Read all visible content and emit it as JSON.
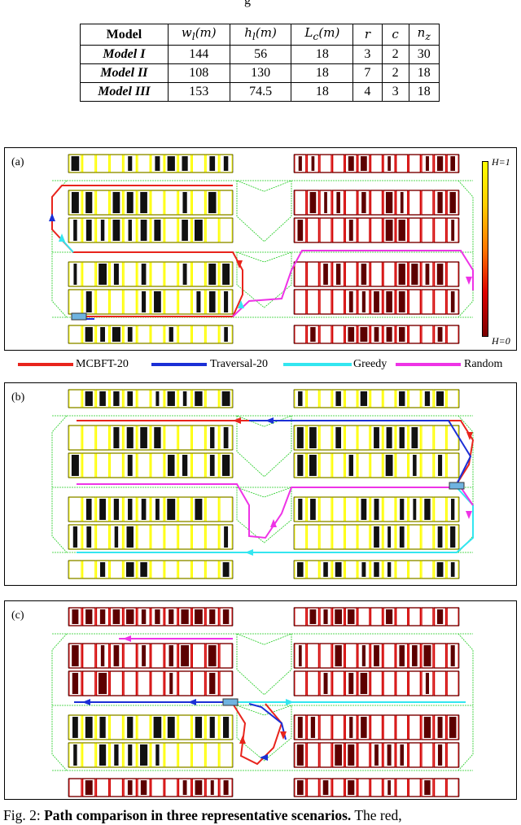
{
  "header_fragment": "g",
  "table": {
    "headers": [
      "Model",
      "w_l(m)",
      "h_l(m)",
      "L_c(m)",
      "r",
      "c",
      "n_z"
    ],
    "rows": [
      [
        "Model I",
        "144",
        "56",
        "18",
        "3",
        "2",
        "30"
      ],
      [
        "Model II",
        "108",
        "130",
        "18",
        "7",
        "2",
        "18"
      ],
      [
        "Model III",
        "153",
        "74.5",
        "18",
        "4",
        "3",
        "18"
      ]
    ]
  },
  "panels": [
    {
      "label": "(a)"
    },
    {
      "label": "(b)"
    },
    {
      "label": "(c)"
    }
  ],
  "colorbar": {
    "top_label": "H=1",
    "bottom_label": "H=0"
  },
  "legend": {
    "items": [
      {
        "name": "MCBFT-20",
        "color": "#e8241c"
      },
      {
        "name": "Traversal-20",
        "color": "#1b2fd6"
      },
      {
        "name": "Greedy",
        "color": "#33e6f0"
      },
      {
        "name": "Random",
        "color": "#ee33e6"
      }
    ]
  },
  "colors": {
    "yellow": "#ffff00",
    "dark_red": "#5c0000",
    "red_outline": "#d40000",
    "green_net": "#22cc22"
  },
  "caption": {
    "prefix": "Fig. 2: ",
    "bold": "Path comparison in three representative scenarios.",
    "rest": " The red,"
  }
}
